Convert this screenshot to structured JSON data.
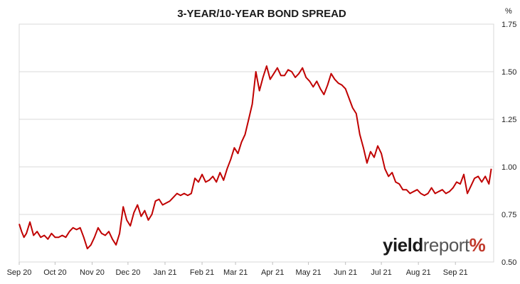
{
  "chart_data": {
    "type": "line",
    "title": "3-YEAR/10-YEAR BOND SPREAD",
    "ylabel": "%",
    "xlabel": "",
    "ylim": [
      0.5,
      1.75
    ],
    "y_ticks": [
      "1.75",
      "1.50",
      "1.25",
      "1.00",
      "0.75",
      "0.50"
    ],
    "y_tick_values": [
      1.75,
      1.5,
      1.25,
      1.0,
      0.75,
      0.5
    ],
    "x_ticks": [
      "Sep 20",
      "Oct 20",
      "Nov 20",
      "Dec 20",
      "Jan 21",
      "Feb 21",
      "Mar 21",
      "Apr 21",
      "May 21",
      "Jun 21",
      "Jul 21",
      "Aug 21",
      "Sep 21"
    ],
    "x_tick_dates": [
      "2020-09-01",
      "2020-10-01",
      "2020-11-01",
      "2020-12-01",
      "2021-01-01",
      "2021-02-01",
      "2021-03-01",
      "2021-04-01",
      "2021-05-01",
      "2021-06-01",
      "2021-07-01",
      "2021-08-01",
      "2021-09-01"
    ],
    "x_range": [
      "2020-09-01",
      "2021-10-03"
    ],
    "grid": true,
    "legend": "none",
    "series": [
      {
        "line_color": "#c00000",
        "x": [
          "2020-09-01",
          "2020-09-03",
          "2020-09-05",
          "2020-09-07",
          "2020-09-10",
          "2020-09-13",
          "2020-09-16",
          "2020-09-19",
          "2020-09-22",
          "2020-09-25",
          "2020-09-28",
          "2020-10-01",
          "2020-10-04",
          "2020-10-07",
          "2020-10-10",
          "2020-10-13",
          "2020-10-16",
          "2020-10-19",
          "2020-10-22",
          "2020-10-25",
          "2020-10-28",
          "2020-10-31",
          "2020-11-03",
          "2020-11-06",
          "2020-11-09",
          "2020-11-12",
          "2020-11-15",
          "2020-11-18",
          "2020-11-21",
          "2020-11-24",
          "2020-11-27",
          "2020-11-30",
          "2020-12-03",
          "2020-12-06",
          "2020-12-09",
          "2020-12-12",
          "2020-12-15",
          "2020-12-18",
          "2020-12-21",
          "2020-12-24",
          "2020-12-27",
          "2020-12-30",
          "2021-01-02",
          "2021-01-05",
          "2021-01-08",
          "2021-01-11",
          "2021-01-14",
          "2021-01-17",
          "2021-01-20",
          "2021-01-23",
          "2021-01-26",
          "2021-01-29",
          "2021-02-01",
          "2021-02-04",
          "2021-02-07",
          "2021-02-10",
          "2021-02-13",
          "2021-02-16",
          "2021-02-19",
          "2021-02-22",
          "2021-02-25",
          "2021-02-28",
          "2021-03-03",
          "2021-03-06",
          "2021-03-09",
          "2021-03-12",
          "2021-03-15",
          "2021-03-18",
          "2021-03-21",
          "2021-03-24",
          "2021-03-27",
          "2021-03-30",
          "2021-04-02",
          "2021-04-05",
          "2021-04-08",
          "2021-04-11",
          "2021-04-14",
          "2021-04-17",
          "2021-04-20",
          "2021-04-23",
          "2021-04-26",
          "2021-04-29",
          "2021-05-02",
          "2021-05-05",
          "2021-05-08",
          "2021-05-11",
          "2021-05-14",
          "2021-05-17",
          "2021-05-20",
          "2021-05-23",
          "2021-05-26",
          "2021-05-29",
          "2021-06-01",
          "2021-06-04",
          "2021-06-07",
          "2021-06-10",
          "2021-06-13",
          "2021-06-16",
          "2021-06-19",
          "2021-06-22",
          "2021-06-25",
          "2021-06-28",
          "2021-07-01",
          "2021-07-04",
          "2021-07-07",
          "2021-07-10",
          "2021-07-13",
          "2021-07-16",
          "2021-07-19",
          "2021-07-22",
          "2021-07-25",
          "2021-07-28",
          "2021-07-31",
          "2021-08-03",
          "2021-08-06",
          "2021-08-09",
          "2021-08-12",
          "2021-08-15",
          "2021-08-18",
          "2021-08-21",
          "2021-08-24",
          "2021-08-27",
          "2021-08-30",
          "2021-09-02",
          "2021-09-05",
          "2021-09-08",
          "2021-09-11",
          "2021-09-14",
          "2021-09-17",
          "2021-09-20",
          "2021-09-23",
          "2021-09-26",
          "2021-09-29",
          "2021-10-01"
        ],
        "values": [
          0.7,
          0.66,
          0.63,
          0.65,
          0.71,
          0.64,
          0.66,
          0.63,
          0.64,
          0.62,
          0.65,
          0.63,
          0.63,
          0.64,
          0.63,
          0.66,
          0.68,
          0.67,
          0.68,
          0.63,
          0.57,
          0.59,
          0.63,
          0.68,
          0.65,
          0.64,
          0.66,
          0.62,
          0.59,
          0.65,
          0.79,
          0.72,
          0.69,
          0.76,
          0.8,
          0.74,
          0.77,
          0.72,
          0.75,
          0.82,
          0.83,
          0.8,
          0.81,
          0.82,
          0.84,
          0.86,
          0.85,
          0.86,
          0.85,
          0.86,
          0.94,
          0.92,
          0.96,
          0.92,
          0.93,
          0.95,
          0.92,
          0.97,
          0.93,
          0.99,
          1.04,
          1.1,
          1.07,
          1.13,
          1.17,
          1.25,
          1.33,
          1.5,
          1.4,
          1.47,
          1.53,
          1.46,
          1.49,
          1.52,
          1.48,
          1.48,
          1.51,
          1.5,
          1.47,
          1.49,
          1.52,
          1.47,
          1.45,
          1.42,
          1.45,
          1.41,
          1.38,
          1.43,
          1.49,
          1.46,
          1.44,
          1.43,
          1.41,
          1.36,
          1.31,
          1.28,
          1.17,
          1.1,
          1.02,
          1.08,
          1.05,
          1.11,
          1.07,
          0.99,
          0.95,
          0.97,
          0.92,
          0.91,
          0.88,
          0.88,
          0.86,
          0.87,
          0.88,
          0.86,
          0.85,
          0.86,
          0.89,
          0.86,
          0.87,
          0.88,
          0.86,
          0.87,
          0.89,
          0.92,
          0.91,
          0.96,
          0.86,
          0.9,
          0.94,
          0.95,
          0.92,
          0.95,
          0.91,
          0.99
        ]
      }
    ]
  },
  "logo": {
    "part1": "yield",
    "part2": "report",
    "part3": "%"
  }
}
